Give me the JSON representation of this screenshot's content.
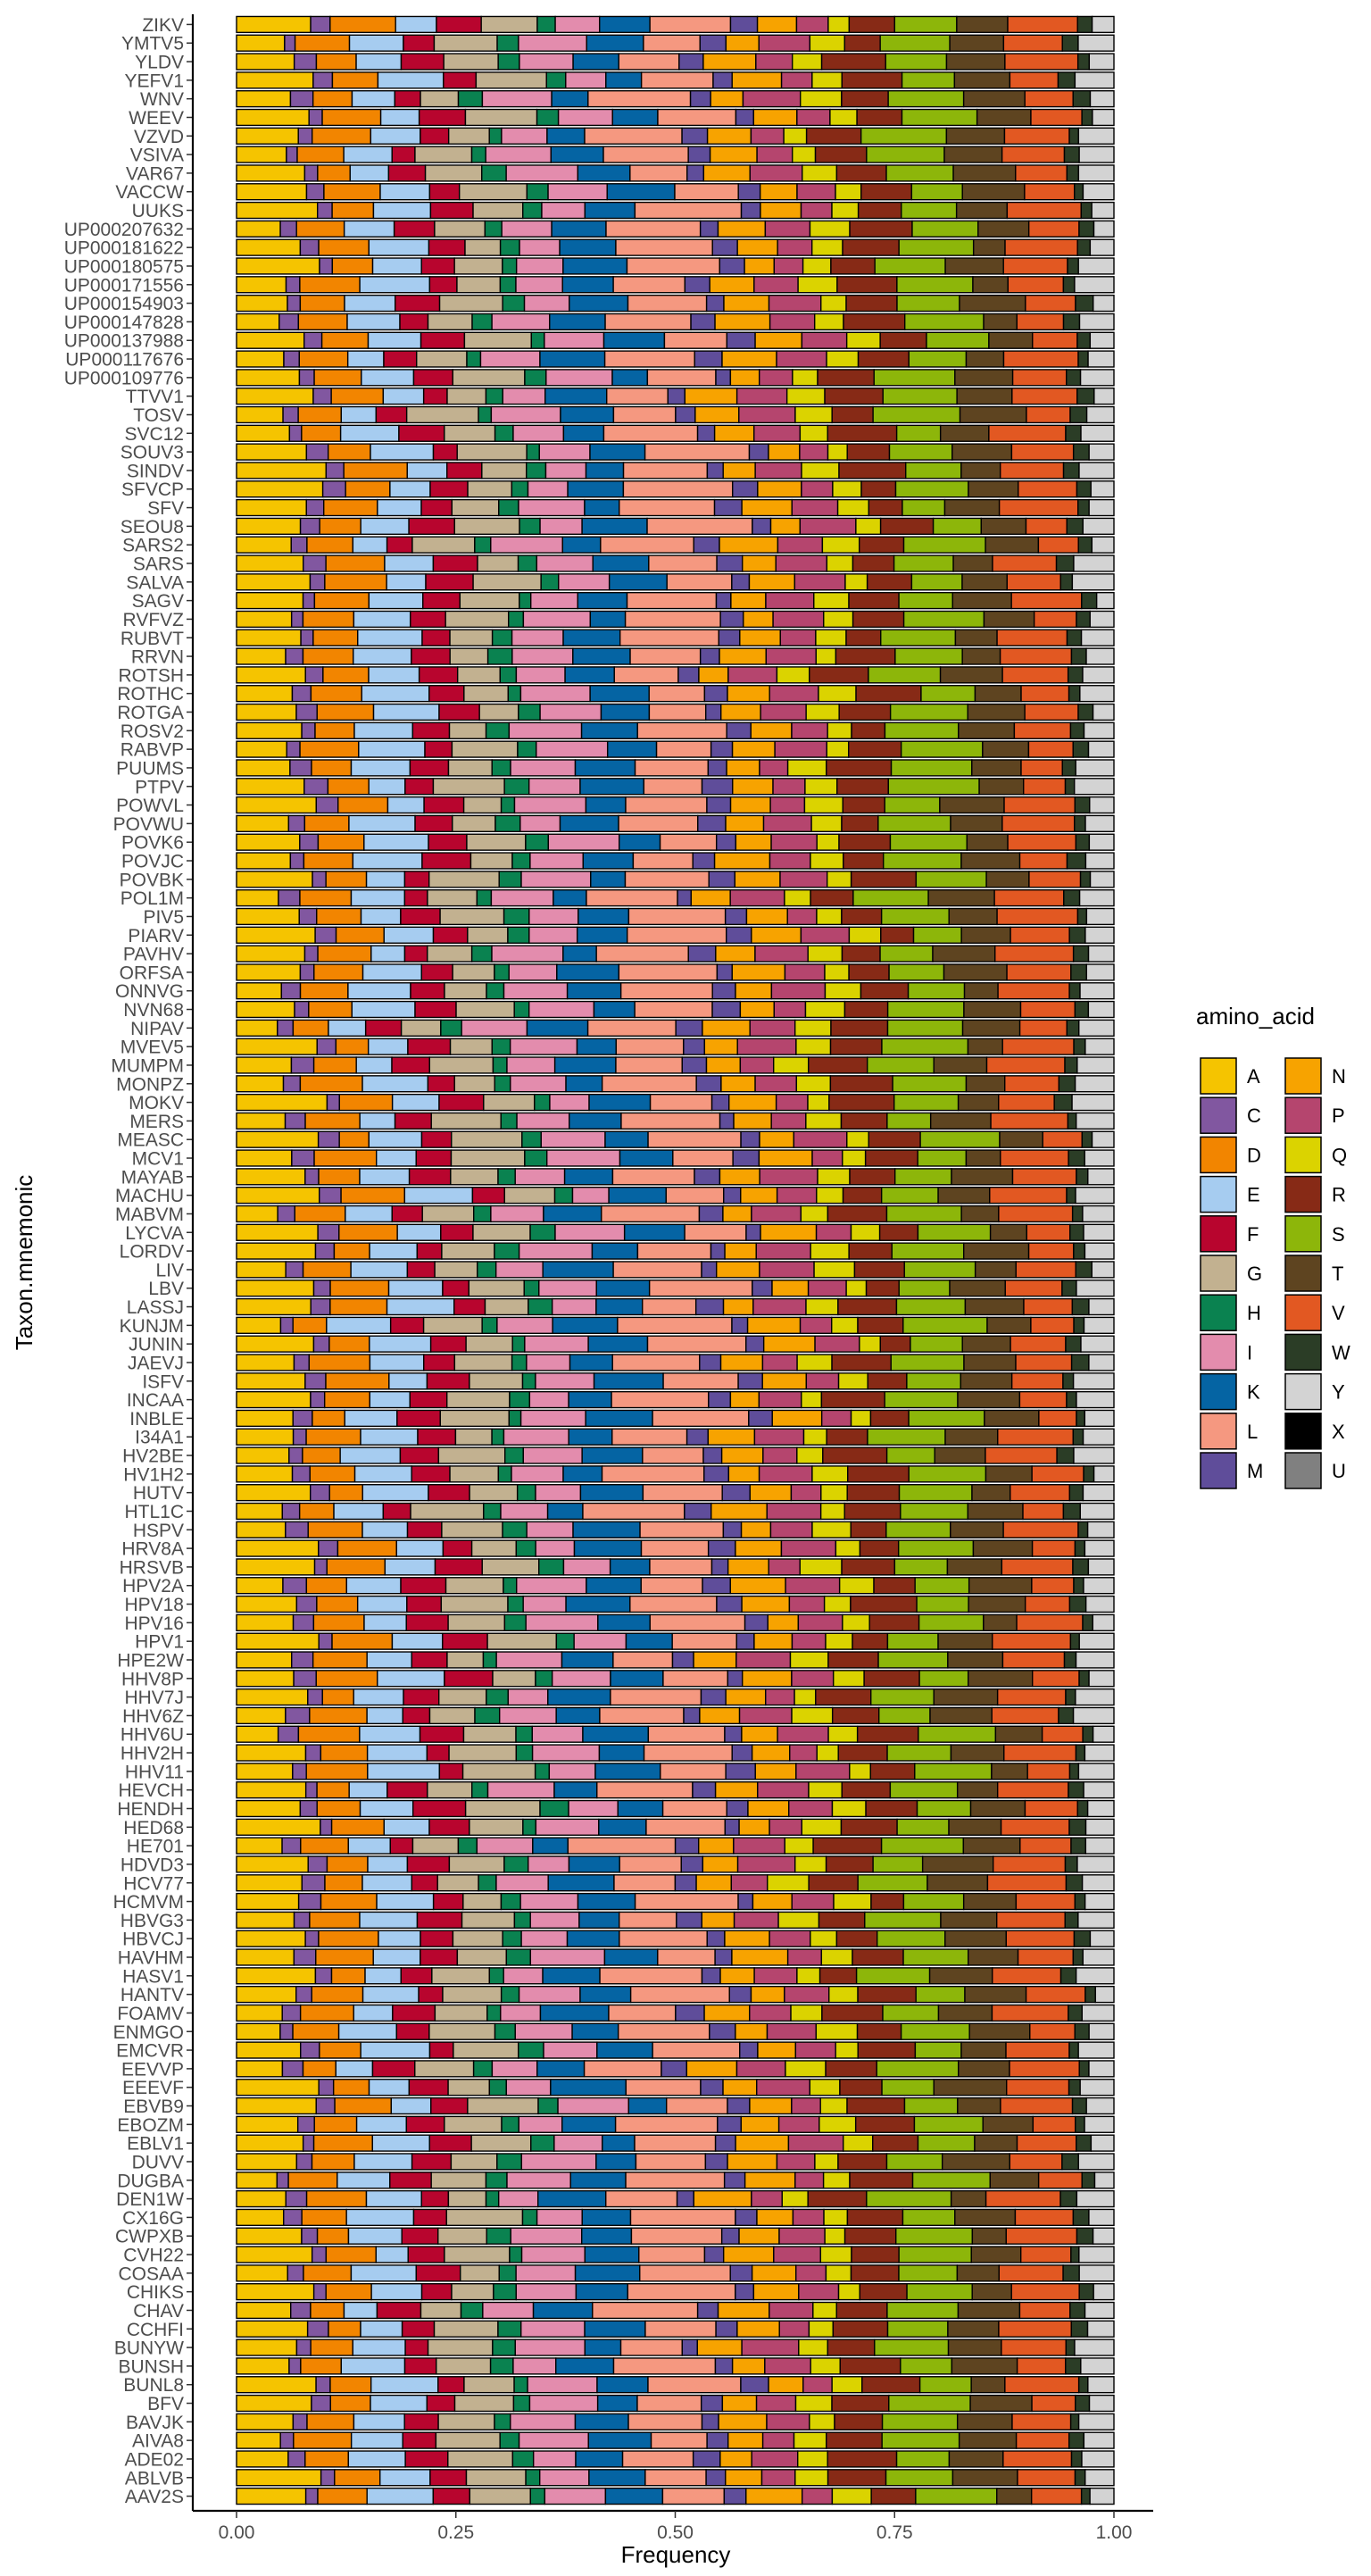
{
  "chart_data": {
    "type": "bar",
    "orientation": "horizontal",
    "stacked": true,
    "title": "",
    "xlabel": "Frequency",
    "ylabel": "Taxon.mnemonic",
    "xlim": [
      0,
      1
    ],
    "x_ticks": [
      "0.00",
      "0.25",
      "0.50",
      "0.75",
      "1.00"
    ],
    "grid": false,
    "legend": {
      "title": "amino_acid",
      "placement": "right",
      "entries": [
        {
          "code": "A",
          "color": "#F5C400"
        },
        {
          "code": "C",
          "color": "#8157A0"
        },
        {
          "code": "D",
          "color": "#F28500"
        },
        {
          "code": "E",
          "color": "#A6CCF0"
        },
        {
          "code": "F",
          "color": "#B8052E"
        },
        {
          "code": "G",
          "color": "#C2B190"
        },
        {
          "code": "H",
          "color": "#0A8250"
        },
        {
          "code": "I",
          "color": "#E38CAD"
        },
        {
          "code": "K",
          "color": "#0564A3"
        },
        {
          "code": "L",
          "color": "#F59880"
        },
        {
          "code": "M",
          "color": "#5F4D9A"
        },
        {
          "code": "N",
          "color": "#F7A300"
        },
        {
          "code": "P",
          "color": "#B5456E"
        },
        {
          "code": "Q",
          "color": "#DBD300"
        },
        {
          "code": "R",
          "color": "#872A16"
        },
        {
          "code": "S",
          "color": "#8DB60A"
        },
        {
          "code": "T",
          "color": "#5E4420"
        },
        {
          "code": "V",
          "color": "#E25822"
        },
        {
          "code": "W",
          "color": "#2B3D26"
        },
        {
          "code": "Y",
          "color": "#D3D3D3"
        },
        {
          "code": "X",
          "color": "#000000"
        },
        {
          "code": "U",
          "color": "#808080"
        }
      ]
    },
    "category_order": "top to bottom",
    "categories": [
      "ZIKV",
      "YMTV5",
      "YLDV",
      "YEFV1",
      "WNV",
      "WEEV",
      "VZVD",
      "VSIVA",
      "VAR67",
      "VACCW",
      "UUKS",
      "UP000207632",
      "UP000181622",
      "UP000180575",
      "UP000171556",
      "UP000154903",
      "UP000147828",
      "UP000137988",
      "UP000117676",
      "UP000109776",
      "TTVV1",
      "TOSV",
      "SVC12",
      "SOUV3",
      "SINDV",
      "SFVCP",
      "SFV",
      "SEOU8",
      "SARS2",
      "SARS",
      "SALVA",
      "SAGV",
      "RVFVZ",
      "RUBVT",
      "RRVN",
      "ROTSH",
      "ROTHC",
      "ROTGA",
      "ROSV2",
      "RABVP",
      "PUUMS",
      "PTPV",
      "POWVL",
      "POVWU",
      "POVK6",
      "POVJC",
      "POVBK",
      "POL1M",
      "PIV5",
      "PIARV",
      "PAVHV",
      "ORFSA",
      "ONNVG",
      "NVN68",
      "NIPAV",
      "MVEV5",
      "MUMPM",
      "MONPZ",
      "MOKV",
      "MERS",
      "MEASC",
      "MCV1",
      "MAYAB",
      "MACHU",
      "MABVM",
      "LYCVA",
      "LORDV",
      "LIV",
      "LBV",
      "LASSJ",
      "KUNJM",
      "JUNIN",
      "JAEVJ",
      "ISFV",
      "INCAA",
      "INBLE",
      "I34A1",
      "HV2BE",
      "HV1H2",
      "HUTV",
      "HTL1C",
      "HSPV",
      "HRV8A",
      "HRSVB",
      "HPV2A",
      "HPV18",
      "HPV16",
      "HPV1",
      "HPE2W",
      "HHV8P",
      "HHV7J",
      "HHV6Z",
      "HHV6U",
      "HHV2H",
      "HHV11",
      "HEVCH",
      "HENDH",
      "HED68",
      "HE701",
      "HDVD3",
      "HCV77",
      "HCMVM",
      "HBVG3",
      "HBVCJ",
      "HAVHM",
      "HASV1",
      "HANTV",
      "FOAMV",
      "ENMGO",
      "EMCVR",
      "EEVVP",
      "EEEVF",
      "EBVB9",
      "EBOZM",
      "EBLV1",
      "DUVV",
      "DUGBA",
      "DEN1W",
      "CX16G",
      "CWPXB",
      "CVH22",
      "COSAA",
      "CHIKS",
      "CHAV",
      "CCHFI",
      "BUNYW",
      "BUNSH",
      "BUNL8",
      "BFV",
      "BAVJK",
      "AIVA8",
      "ADE02",
      "ABLVB",
      "AAV2S"
    ],
    "composition_note": "",
    "typical_composition": {
      "A": 0.075,
      "C": 0.02,
      "D": 0.055,
      "E": 0.06,
      "F": 0.04,
      "G": 0.065,
      "H": 0.022,
      "I": 0.065,
      "K": 0.06,
      "L": 0.095,
      "M": 0.025,
      "N": 0.05,
      "P": 0.05,
      "Q": 0.035,
      "R": 0.06,
      "S": 0.075,
      "T": 0.06,
      "V": 0.07,
      "W": 0.015,
      "Y": 0.035,
      "X": 0.0,
      "U": 0.0
    }
  }
}
